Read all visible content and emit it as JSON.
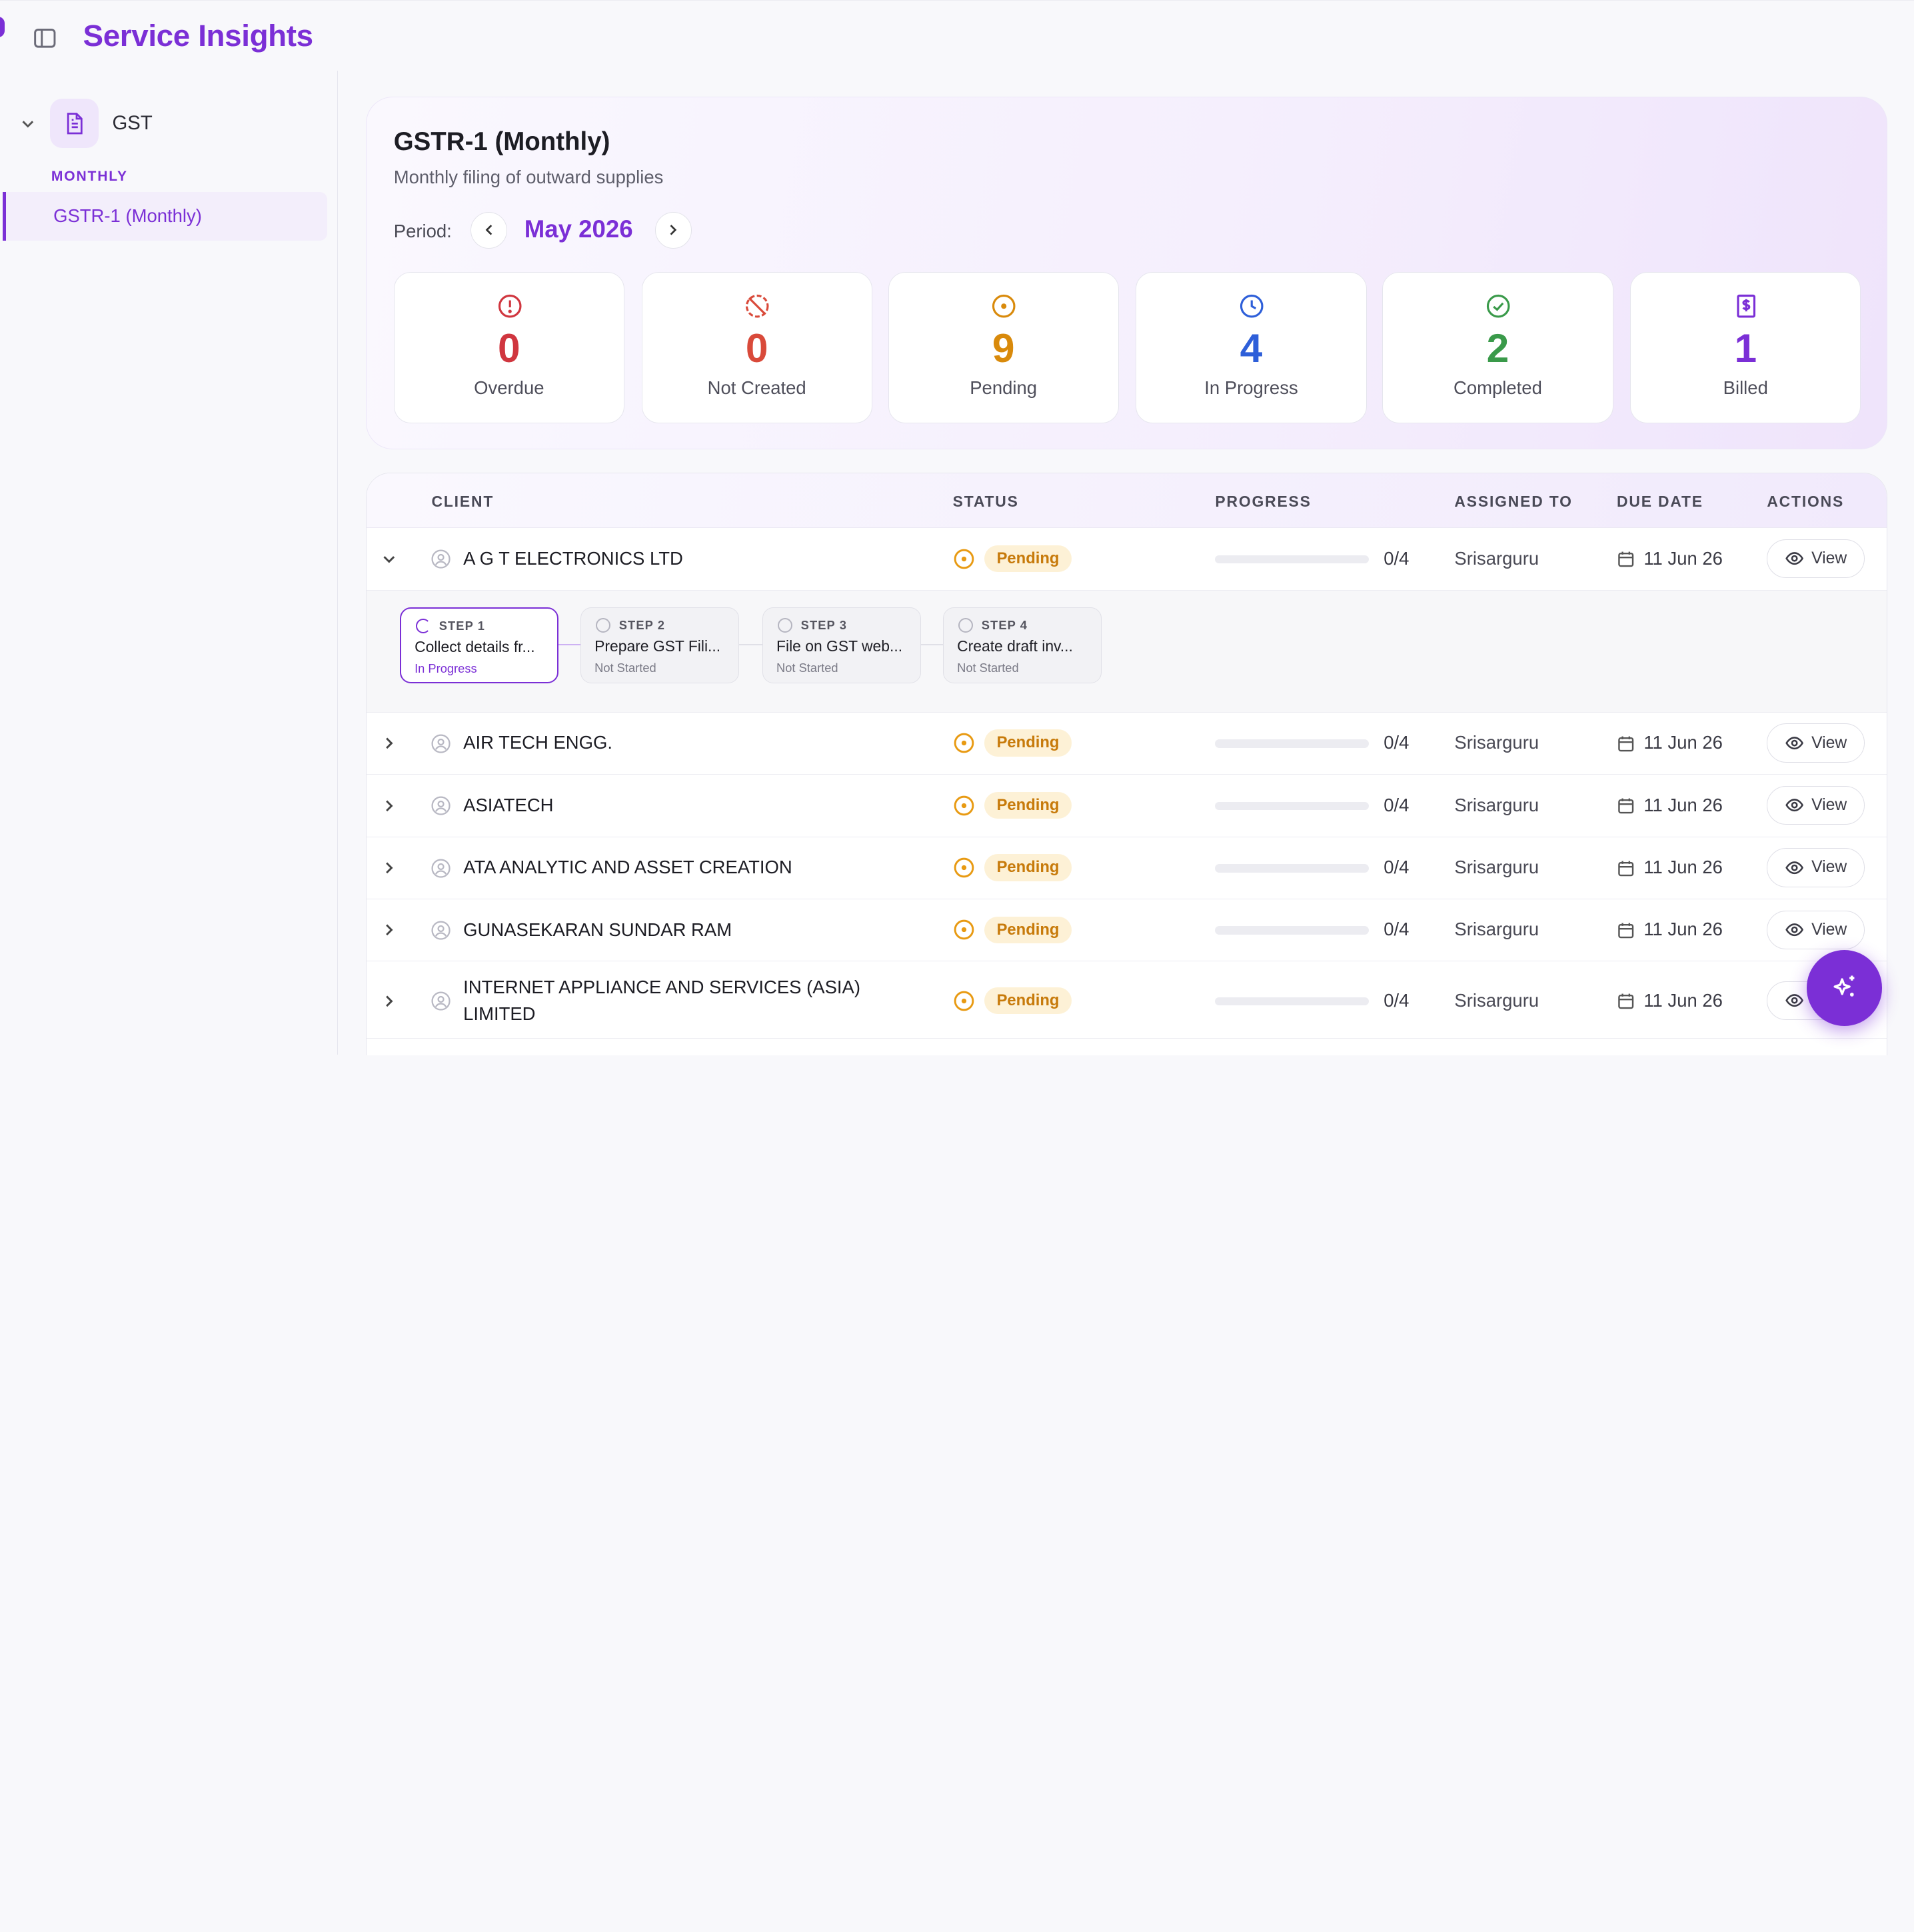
{
  "app": {
    "title": "Service Insights"
  },
  "sidebar": {
    "group": {
      "label": "GST",
      "icon": "document-icon"
    },
    "section_caption": "MONTHLY",
    "items": [
      {
        "label": "GSTR-1 (Monthly)",
        "active": true
      }
    ]
  },
  "hero": {
    "title": "GSTR-1 (Monthly)",
    "subtitle": "Monthly filing of outward supplies",
    "period_label": "Period:",
    "period_value": "May 2026"
  },
  "stats": [
    {
      "label": "Overdue",
      "value": "0",
      "color": "#d0363f",
      "icon": "alert-circle-icon"
    },
    {
      "label": "Not Created",
      "value": "0",
      "color": "#d94a3a",
      "icon": "circle-slash-icon"
    },
    {
      "label": "Pending",
      "value": "9",
      "color": "#d98a0b",
      "icon": "pending-circle-icon"
    },
    {
      "label": "In Progress",
      "value": "4",
      "color": "#2e5fd9",
      "icon": "clock-icon"
    },
    {
      "label": "Completed",
      "value": "2",
      "color": "#3a9a4a",
      "icon": "check-circle-icon"
    },
    {
      "label": "Billed",
      "value": "1",
      "color": "#7b2fd6",
      "icon": "invoice-dollar-icon"
    }
  ],
  "table": {
    "headers": {
      "client": "CLIENT",
      "status": "STATUS",
      "progress": "PROGRESS",
      "assigned_to": "ASSIGNED TO",
      "due_date": "DUE DATE",
      "actions": "ACTIONS"
    },
    "view_label": "View",
    "rows": [
      {
        "client": "A G T ELECTRONICS LTD",
        "status": "Pending",
        "progress_text": "0/4",
        "progress": 0,
        "assignee": "Srisarguru",
        "due": "11 Jun 26",
        "expanded": true
      },
      {
        "client": "AIR TECH ENGG.",
        "status": "Pending",
        "progress_text": "0/4",
        "progress": 0,
        "assignee": "Srisarguru",
        "due": "11 Jun 26",
        "expanded": false
      },
      {
        "client": "ASIATECH",
        "status": "Pending",
        "progress_text": "0/4",
        "progress": 0,
        "assignee": "Srisarguru",
        "due": "11 Jun 26",
        "expanded": false
      },
      {
        "client": "ATA ANALYTIC AND ASSET CREATION",
        "status": "Pending",
        "progress_text": "0/4",
        "progress": 0,
        "assignee": "Srisarguru",
        "due": "11 Jun 26",
        "expanded": false
      },
      {
        "client": "GUNASEKARAN SUNDAR RAM",
        "status": "Pending",
        "progress_text": "0/4",
        "progress": 0,
        "assignee": "Srisarguru",
        "due": "11 Jun 26",
        "expanded": false
      },
      {
        "client": "INTERNET APPLIANCE AND SERVICES (ASIA) LIMITED",
        "status": "Pending",
        "progress_text": "0/4",
        "progress": 0,
        "assignee": "Srisarguru",
        "due": "11 Jun 26",
        "expanded": false
      }
    ],
    "steps": [
      {
        "number": "STEP 1",
        "title": "Collect details fr...",
        "status": "In Progress",
        "active": true
      },
      {
        "number": "STEP 2",
        "title": "Prepare GST Fili...",
        "status": "Not Started",
        "active": false
      },
      {
        "number": "STEP 3",
        "title": "File on GST web...",
        "status": "Not Started",
        "active": false
      },
      {
        "number": "STEP 4",
        "title": "Create draft inv...",
        "status": "Not Started",
        "active": false
      }
    ]
  },
  "colors": {
    "accent": "#7b2fd6",
    "pending": "#e89a12",
    "pending_badge_bg": "#fdf1d6"
  },
  "fab": {
    "icon": "sparkles-icon"
  }
}
